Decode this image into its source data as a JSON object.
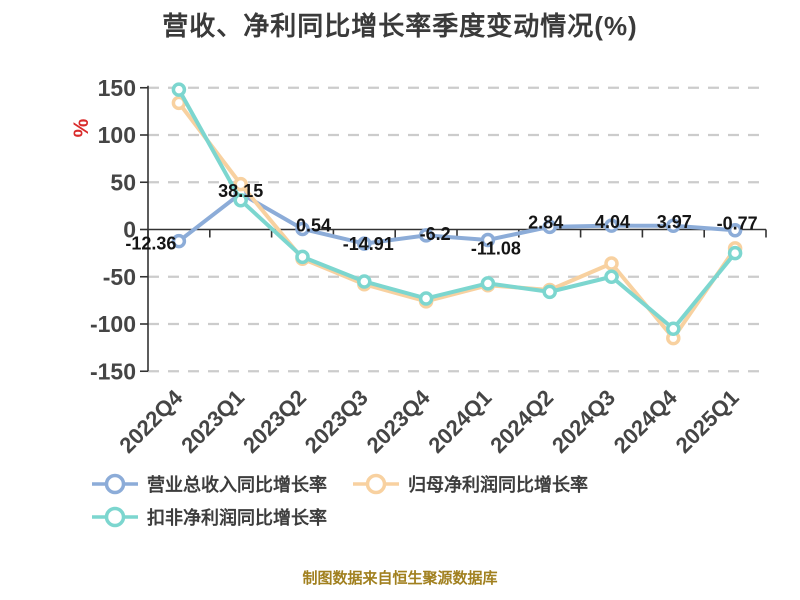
{
  "title": "营收、净利同比增长率季度变动情况(%)",
  "footer": "制图数据来自恒生聚源数据库",
  "chart_data": {
    "type": "line",
    "title": "营收、净利同比增长率季度变动情况(%)",
    "xlabel": "",
    "ylabel": "%",
    "unit_label": "%",
    "unit_label_color": "#d92b2b",
    "ylim": [
      -150,
      150
    ],
    "ytick_step": 50,
    "y_ticks": [
      "150",
      "100",
      "50",
      "0",
      "-50",
      "-100",
      "-150"
    ],
    "grid": "horizontal-dashed",
    "grid_color": "#cccccc",
    "axis_color": "#333333",
    "axis_text_color": "#454545",
    "legend_position": "bottom-left",
    "categories": [
      "2022Q4",
      "2023Q1",
      "2023Q2",
      "2023Q3",
      "2023Q4",
      "2024Q1",
      "2024Q2",
      "2024Q3",
      "2024Q4",
      "2025Q1"
    ],
    "series": [
      {
        "name": "营业总收入同比增长率",
        "color": "#8cacd8",
        "values": [
          -12.36,
          38.15,
          0.54,
          -14.91,
          -6.2,
          -11.08,
          2.84,
          4.04,
          3.97,
          -0.77
        ],
        "labels": [
          "-12.36",
          "38.15",
          "0.54",
          "-14.91",
          "-6.2",
          "-11.08",
          "2.84",
          "4.04",
          "3.97",
          "-0.77"
        ],
        "label_offsets": [
          [
            -28,
            2
          ],
          [
            0,
            -3
          ],
          [
            11,
            -4
          ],
          [
            4,
            0
          ],
          [
            9,
            -2
          ],
          [
            8,
            8
          ],
          [
            -4,
            -5
          ],
          [
            1,
            -4
          ],
          [
            1,
            -4
          ],
          [
            2,
            -7
          ]
        ],
        "label_color": "#151515"
      },
      {
        "name": "归母净利润同比增长率",
        "color": "#f8d1a0",
        "values": [
          134,
          48,
          -31,
          -58,
          -76,
          -59,
          -64,
          -36,
          -115,
          -20
        ]
      },
      {
        "name": "扣非净利润同比增长率",
        "color": "#7cd6cf",
        "values": [
          148,
          31,
          -29,
          -55,
          -73,
          -57,
          -66,
          -50,
          -105,
          -25
        ]
      }
    ]
  }
}
